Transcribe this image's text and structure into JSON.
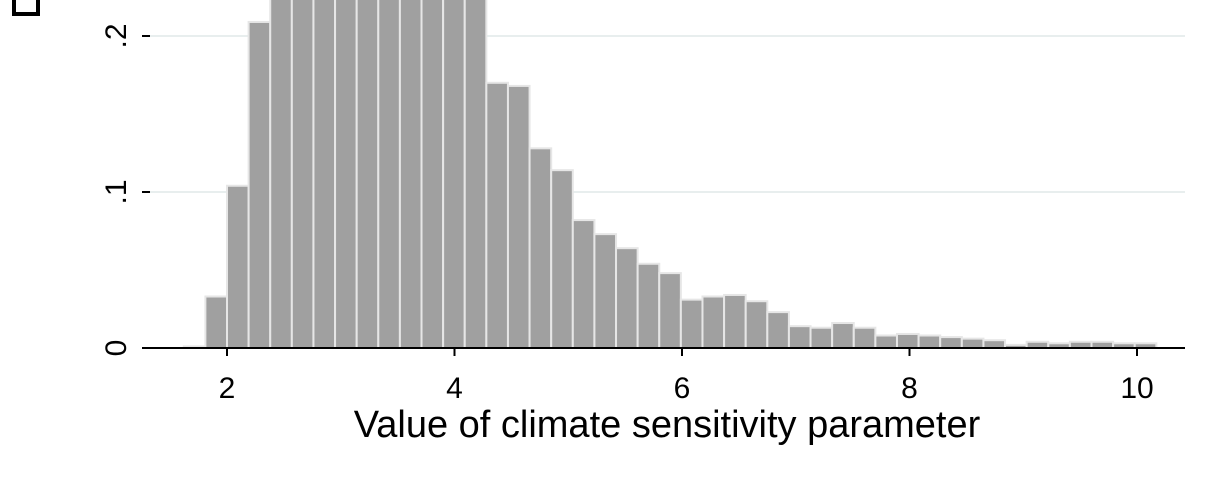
{
  "chart_data": {
    "type": "bar",
    "xlabel": "Value of climate sensitivity parameter",
    "ylabel": "",
    "xlim": [
      1.3,
      10.4
    ],
    "ylim": [
      0,
      0.225
    ],
    "x_ticks": [
      2,
      4,
      6,
      8,
      10
    ],
    "x_tick_labels": [
      "2",
      "4",
      "6",
      "8",
      "10"
    ],
    "y_ticks": [
      0,
      0.1,
      0.2
    ],
    "y_tick_labels": [
      "0",
      ".1",
      ".2"
    ],
    "grid": true,
    "bin_width": 0.19,
    "bin_edges_start": 1.62,
    "values": [
      0.001,
      0.033,
      0.104,
      0.209,
      0.225,
      0.225,
      0.225,
      0.225,
      0.225,
      0.225,
      0.225,
      0.225,
      0.225,
      0.225,
      0.17,
      0.168,
      0.128,
      0.114,
      0.082,
      0.073,
      0.064,
      0.054,
      0.048,
      0.031,
      0.033,
      0.034,
      0.03,
      0.023,
      0.014,
      0.013,
      0.016,
      0.013,
      0.008,
      0.009,
      0.008,
      0.007,
      0.006,
      0.005,
      0.002,
      0.004,
      0.003,
      0.004,
      0.004,
      0.003,
      0.003
    ],
    "bar_color": "#a0a0a0",
    "bar_edge_color": "#e6e6e6"
  }
}
